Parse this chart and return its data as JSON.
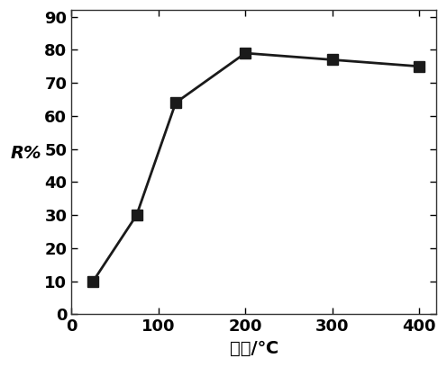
{
  "x": [
    25,
    75,
    120,
    200,
    300,
    400
  ],
  "y": [
    10,
    30,
    64,
    79,
    77,
    75
  ],
  "xlabel": "温度/℃",
  "ylabel": "R%",
  "xlim": [
    0,
    420
  ],
  "ylim": [
    0,
    92
  ],
  "xticks": [
    0,
    100,
    200,
    300,
    400
  ],
  "yticks": [
    0,
    10,
    20,
    30,
    40,
    50,
    60,
    70,
    80,
    90
  ],
  "line_color": "#1a1a1a",
  "marker": "s",
  "marker_size": 8,
  "line_width": 2.0,
  "fig_width": 4.96,
  "fig_height": 4.08,
  "dpi": 100,
  "tick_fontsize": 13,
  "label_fontsize": 14,
  "border_color": "#555555"
}
